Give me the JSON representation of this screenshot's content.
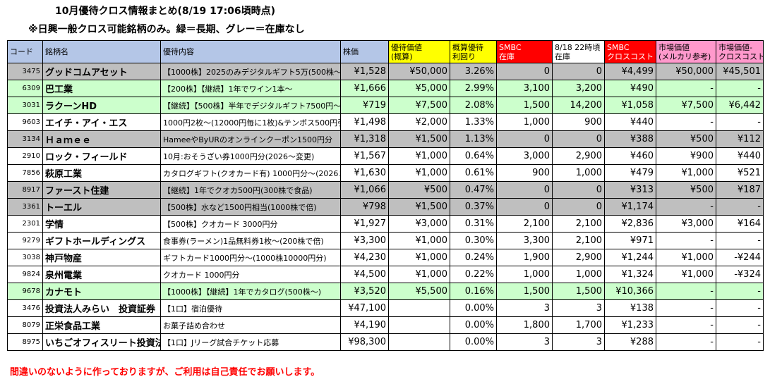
{
  "title": "10月優待クロス情報まとめ(8/19 17:06頃時点)",
  "subtitle": "※日興一般クロス可能銘柄のみ。緑＝長期、グレー＝在庫なし",
  "footer": "間違いのないように作っておりますが、ご利用は自己責任でお願いします。",
  "headers": {
    "code": "コード",
    "name": "銘柄名",
    "yutai": "優待内容",
    "price": "株価",
    "value_l1": "優待価値",
    "value_l2": "(概算)",
    "yield_l1": "概算優待",
    "yield_l2": "利回り",
    "smbc_l1": "SMBC",
    "smbc_l2": "在庫",
    "stock818_l1": "8/18 22時頃",
    "stock818_l2": "在庫",
    "cost_l1": "SMBC",
    "cost_l2": "クロスコスト",
    "market_l1": "市場価値",
    "market_l2": "(メルカリ参考)",
    "diff_l1": "市場価値-",
    "diff_l2": "クロスコスト"
  },
  "colors": {
    "header_blue": "#b4c6e7",
    "header_yellow": "#ffff00",
    "header_red": "#ff0000",
    "header_pink": "#ff99cc",
    "row_gray": "#bfbfbf",
    "row_green": "#ccffcc",
    "footer_red": "#ff0000"
  },
  "rows": [
    {
      "style": "gray",
      "code": "3475",
      "name": "グッドコムアセット",
      "yutai": "【1000株】2025のみデジタルギフト5万(500株～)",
      "price": "¥1,528",
      "value": "¥50,000",
      "yield": "3.26%",
      "smbc": "0",
      "stock818": "0",
      "cost": "¥4,499",
      "market": "¥50,000",
      "diff": "¥45,501"
    },
    {
      "style": "green",
      "code": "6309",
      "name": "巴工業",
      "yutai": "【200株】【継続】1年でワイン1本～",
      "price": "¥1,666",
      "value": "¥5,000",
      "yield": "2.99%",
      "smbc": "3,100",
      "stock818": "3,200",
      "cost": "¥490",
      "market": "-",
      "diff": "-"
    },
    {
      "style": "green",
      "code": "3031",
      "name": "ラクーンHD",
      "yutai": "【継続】【500株】半年でデジタルギフト7500円～(",
      "price": "¥719",
      "value": "¥7,500",
      "yield": "2.08%",
      "smbc": "1,500",
      "stock818": "14,200",
      "cost": "¥1,058",
      "market": "¥7,500",
      "diff": "¥6,442"
    },
    {
      "style": "white",
      "code": "9603",
      "name": "エイチ・アイ・エス",
      "yutai": "1000円2枚～(12000円毎に1枚)&テンボス500円引",
      "price": "¥1,498",
      "value": "¥2,000",
      "yield": "1.33%",
      "smbc": "1,000",
      "stock818": "900",
      "cost": "¥440",
      "market": "-",
      "diff": "-"
    },
    {
      "style": "gray",
      "code": "3134",
      "name": "Ｈａｍｅｅ",
      "yutai": "HameeやByURのオンラインクーポン1500円分",
      "price": "¥1,318",
      "value": "¥1,500",
      "yield": "1.13%",
      "smbc": "0",
      "stock818": "0",
      "cost": "¥388",
      "market": "¥500",
      "diff": "¥112"
    },
    {
      "style": "white",
      "code": "2910",
      "name": "ロック・フィールド",
      "yutai": "10月:おそうざい券1000円分(2026～変更)",
      "price": "¥1,567",
      "value": "¥1,000",
      "yield": "0.64%",
      "smbc": "3,000",
      "stock818": "2,900",
      "cost": "¥460",
      "market": "¥900",
      "diff": "¥440"
    },
    {
      "style": "white",
      "code": "7856",
      "name": "萩原工業",
      "yutai": "カタログギフト(クオカード有) 1000円分～(2026ま",
      "price": "¥1,630",
      "value": "¥1,000",
      "yield": "0.61%",
      "smbc": "900",
      "stock818": "1,000",
      "cost": "¥479",
      "market": "¥1,000",
      "diff": "¥521"
    },
    {
      "style": "gray",
      "code": "8917",
      "name": "ファースト住建",
      "yutai": "【継続】1年でクオカ500円(300株で食品)",
      "price": "¥1,066",
      "value": "¥500",
      "yield": "0.47%",
      "smbc": "0",
      "stock818": "0",
      "cost": "¥313",
      "market": "¥500",
      "diff": "¥187"
    },
    {
      "style": "gray",
      "code": "3361",
      "name": "トーエル",
      "yutai": "【500株】水など1500円相当(1000株で倍)",
      "price": "¥798",
      "value": "¥1,500",
      "yield": "0.37%",
      "smbc": "0",
      "stock818": "0",
      "cost": "¥1,174",
      "market": "-",
      "diff": "-"
    },
    {
      "style": "white",
      "code": "2301",
      "name": "学情",
      "yutai": "【500株】クオカード 3000円分",
      "price": "¥1,927",
      "value": "¥3,000",
      "yield": "0.31%",
      "smbc": "2,100",
      "stock818": "2,100",
      "cost": "¥2,836",
      "market": "¥3,000",
      "diff": "¥164"
    },
    {
      "style": "white",
      "code": "9279",
      "name": "ギフトホールディングス",
      "yutai": "食事券(ラーメン)1品無料券1枚～(200株で倍)",
      "price": "¥3,300",
      "value": "¥1,000",
      "yield": "0.30%",
      "smbc": "3,300",
      "stock818": "2,100",
      "cost": "¥971",
      "market": "-",
      "diff": "-"
    },
    {
      "style": "white",
      "code": "3038",
      "name": "神戸物産",
      "yutai": "ギフトカード1000円分～(1000株10000円分)",
      "price": "¥4,230",
      "value": "¥1,000",
      "yield": "0.24%",
      "smbc": "1,900",
      "stock818": "2,900",
      "cost": "¥1,244",
      "market": "¥1,000",
      "diff": "-¥244"
    },
    {
      "style": "white",
      "code": "9824",
      "name": "泉州電業",
      "yutai": "クオカード 1000円分",
      "price": "¥4,500",
      "value": "¥1,000",
      "yield": "0.22%",
      "smbc": "1,000",
      "stock818": "1,000",
      "cost": "¥1,324",
      "market": "¥1,000",
      "diff": "-¥324"
    },
    {
      "style": "green",
      "code": "9678",
      "name": "カナモト",
      "yutai": "【1000株】【継続】1年でカタログ(500株～)",
      "price": "¥3,520",
      "value": "¥5,500",
      "yield": "0.16%",
      "smbc": "1,500",
      "stock818": "1,500",
      "cost": "¥10,366",
      "market": "-",
      "diff": "-"
    },
    {
      "style": "white",
      "code": "3476",
      "name": "投資法人みらい　投資証券",
      "yutai": "【1口】宿泊優待",
      "price": "¥47,100",
      "value": "",
      "yield": "0.00%",
      "smbc": "3",
      "stock818": "3",
      "cost": "¥138",
      "market": "-",
      "diff": "-"
    },
    {
      "style": "white",
      "code": "8079",
      "name": "正栄食品工業",
      "yutai": "お菓子詰め合わせ",
      "price": "¥4,190",
      "value": "",
      "yield": "0.00%",
      "smbc": "1,800",
      "stock818": "1,700",
      "cost": "¥1,233",
      "market": "-",
      "diff": "-"
    },
    {
      "style": "white",
      "code": "8975",
      "name": "いちごオフィスリート投資法",
      "yutai": "【1口】Jリーグ試合チケット応募",
      "price": "¥98,300",
      "value": "",
      "yield": "0.00%",
      "smbc": "3",
      "stock818": "3",
      "cost": "¥288",
      "market": "-",
      "diff": "-"
    }
  ]
}
